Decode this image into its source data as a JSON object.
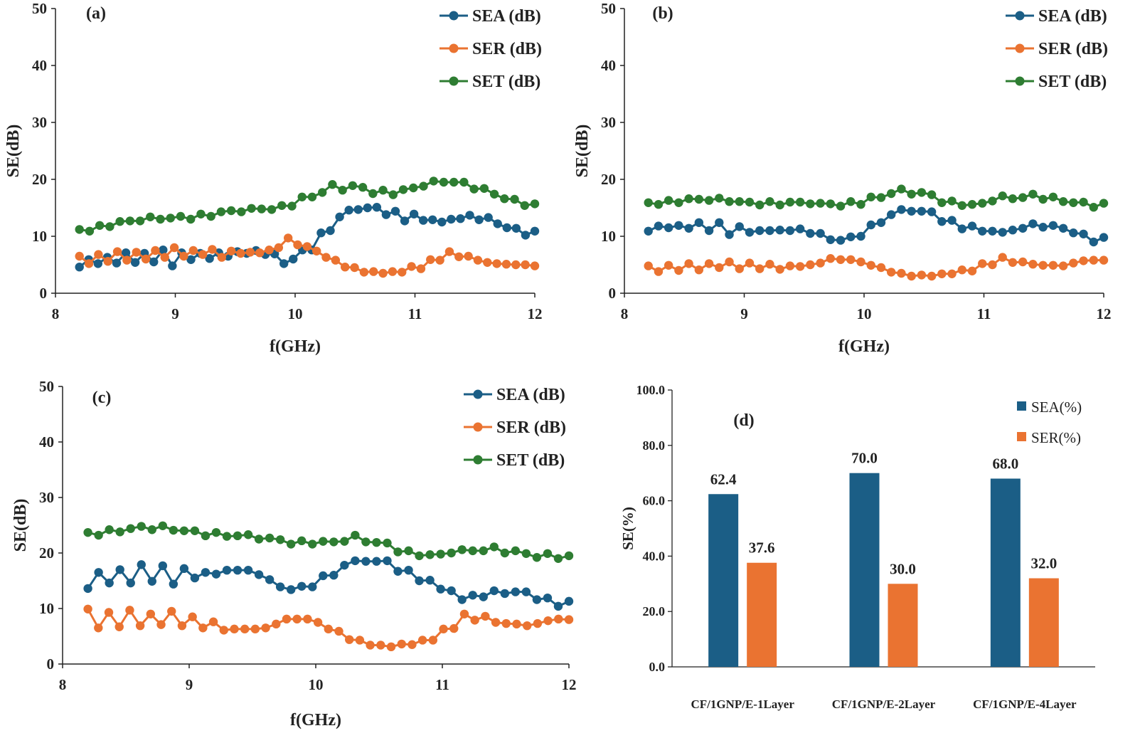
{
  "chart_data": [
    {
      "panel": "(a)",
      "type": "line",
      "xlabel": "f(GHz)",
      "ylabel": "SE(dB)",
      "xlim": [
        8,
        12
      ],
      "ylim": [
        0,
        50
      ],
      "xticks": [
        "8",
        "9",
        "10",
        "11",
        "12"
      ],
      "yticks": [
        "0",
        "10",
        "20",
        "30",
        "40",
        "50"
      ],
      "legend_position": "top-right",
      "series": [
        {
          "name": "SEA (dB)",
          "color": "#1f5f86",
          "x": [
            8.2,
            8.3,
            8.4,
            8.5,
            8.6,
            8.7,
            8.8,
            8.9,
            9.0,
            9.1,
            9.2,
            9.3,
            9.4,
            9.5,
            9.6,
            9.7,
            9.8,
            9.9,
            10.0,
            10.1,
            10.2,
            10.3,
            10.4,
            10.5,
            10.6,
            10.7,
            10.8,
            10.9,
            11.0,
            11.1,
            11.2,
            11.3,
            11.4,
            11.5,
            11.6,
            11.7,
            11.8,
            11.9,
            12.0
          ],
          "y": [
            4.6,
            5.9,
            5.2,
            6.3,
            5.3,
            7.1,
            5.5,
            7.5,
            4.8,
            7.0,
            5.8,
            7.2,
            6.2,
            7.1,
            7.3,
            6.8,
            6.9,
            5.2,
            6.2,
            7.6,
            10.6,
            11.0,
            13.5,
            14.6,
            14.7,
            15.1,
            13.8,
            14.4,
            12.7,
            13.9,
            12.9,
            13.0,
            12.5,
            13.1,
            13.2,
            13.7,
            12.9,
            13.3,
            11.5
          ],
          "ynote": "two-part: listed values map onto x grid approx"
        },
        {
          "name": "SER (dB)",
          "color": "#ea7331",
          "y": []
        },
        {
          "name": "SET (dB)",
          "color": "#2e7d32",
          "y": []
        }
      ]
    }
  ]
}
